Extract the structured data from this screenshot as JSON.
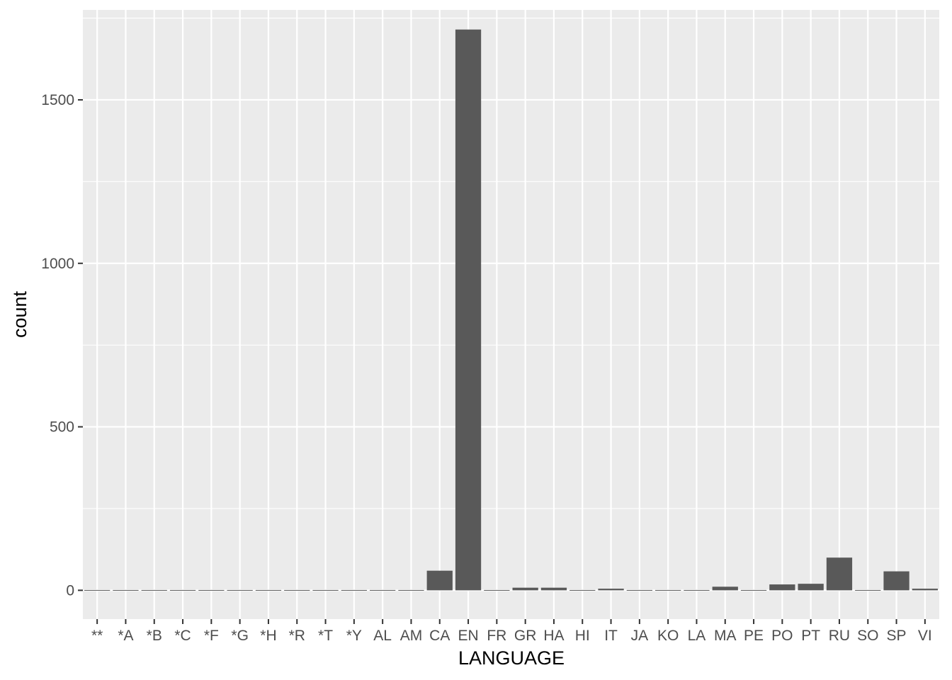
{
  "colors": {
    "panel": "#ebebeb",
    "grid_major": "#ffffff",
    "bar": "#595959",
    "tick": "#333333",
    "tick_label": "#4d4d4d",
    "title": "#000000"
  },
  "chart_data": {
    "type": "bar",
    "xlabel": "LANGUAGE",
    "ylabel": "count",
    "ylim": [
      -88,
      1775
    ],
    "yticks": [
      0,
      500,
      1000,
      1500
    ],
    "grid": true,
    "categories": [
      "**",
      "*A",
      "*B",
      "*C",
      "*F",
      "*G",
      "*H",
      "*R",
      "*T",
      "*Y",
      "AL",
      "AM",
      "CA",
      "EN",
      "FR",
      "GR",
      "HA",
      "HI",
      "IT",
      "JA",
      "KO",
      "LA",
      "MA",
      "PE",
      "PO",
      "PT",
      "RU",
      "SO",
      "SP",
      "VI"
    ],
    "values": [
      1,
      1,
      1,
      1,
      1,
      1,
      1,
      1,
      1,
      1,
      1,
      1,
      60,
      1715,
      1,
      8,
      8,
      1,
      5,
      1,
      1,
      1,
      11,
      1,
      18,
      20,
      100,
      1,
      58,
      5
    ]
  }
}
